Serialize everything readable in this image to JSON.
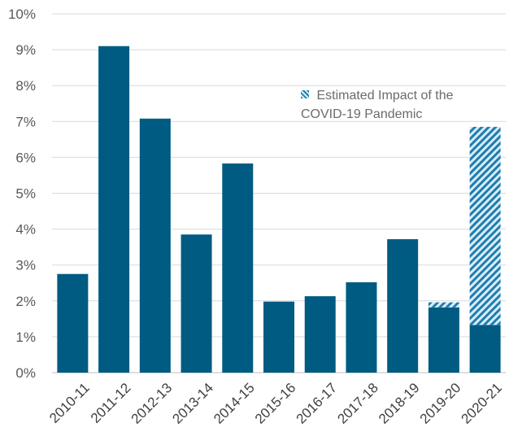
{
  "chart_data": {
    "type": "bar",
    "categories": [
      "2010-11",
      "2011-12",
      "2012-13",
      "2013-14",
      "2014-15",
      "2015-16",
      "2016-17",
      "2017-18",
      "2018-19",
      "2019-20",
      "2020-21"
    ],
    "series": [
      {
        "values": [
          2.75,
          9.1,
          7.08,
          3.85,
          5.83,
          1.98,
          2.13,
          2.52,
          3.72,
          1.82,
          1.33
        ],
        "color": "#005b82"
      },
      {
        "name": "Estimated Impact of the COVID-19 Pandemic",
        "values": [
          0,
          0,
          0,
          0,
          0,
          0,
          0,
          0,
          0,
          0.14,
          5.52
        ],
        "color": "#005b82",
        "pattern": "diagonal-hatch",
        "pattern_secondary_color": "#d9edf7"
      }
    ],
    "title": "",
    "xlabel": "",
    "ylabel": "",
    "ylim": [
      0,
      10
    ],
    "y_ticks": [
      "0%",
      "1%",
      "2%",
      "3%",
      "4%",
      "5%",
      "6%",
      "7%",
      "8%",
      "9%",
      "10%"
    ],
    "grid": true,
    "legend": "top-right",
    "stacked": true
  }
}
